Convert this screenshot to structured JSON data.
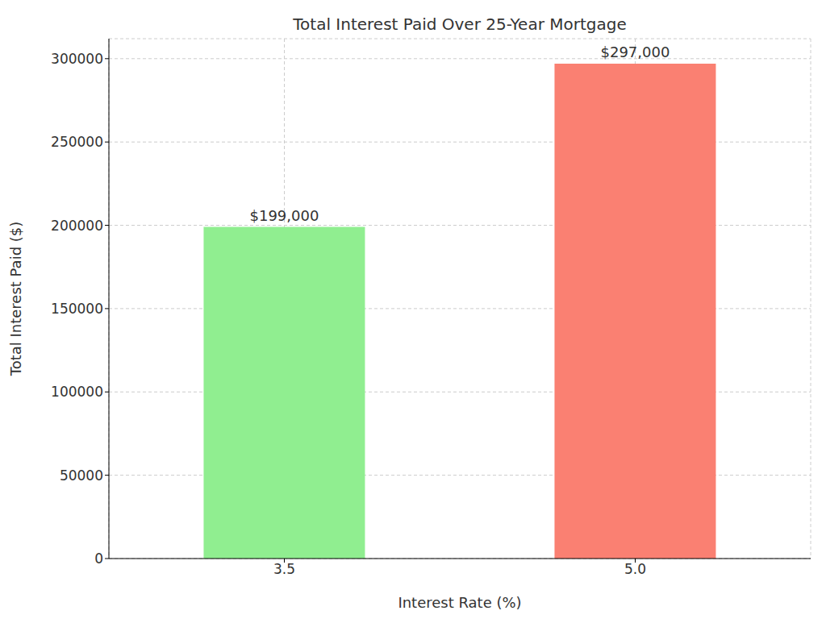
{
  "chart_data": {
    "type": "bar",
    "title": "Total Interest Paid Over 25-Year Mortgage",
    "x_label": "Interest Rate (%)",
    "y_label": "Total Interest Paid ($)",
    "categories": [
      "3.5",
      "5.0"
    ],
    "values": [
      199000,
      297000
    ],
    "value_labels": [
      "$199,000",
      "$297,000"
    ],
    "colors": [
      "#90ee90",
      "#fa8072"
    ],
    "ylim": [
      0,
      312000
    ],
    "yticks": [
      0,
      50000,
      100000,
      150000,
      200000,
      250000,
      300000
    ],
    "grid": true,
    "data_labels": true
  }
}
